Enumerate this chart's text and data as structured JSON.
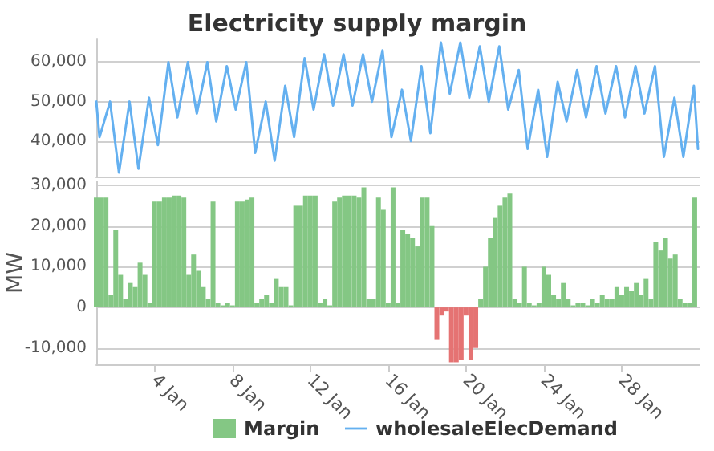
{
  "chart_data": [
    {
      "type": "line",
      "title": "Electricity supply margin",
      "tick_labels": "y",
      "grid": "y",
      "legend": "bottom",
      "marker": "none",
      "line_style": "solid",
      "xlim": [
        "--01-01",
        "--02-01"
      ],
      "ylim": [
        31000,
        66000
      ],
      "yticks": [
        {
          "value": 40000,
          "label": "40,000"
        },
        {
          "value": 50000,
          "label": "50,000"
        },
        {
          "value": 60000,
          "label": "60,000"
        }
      ],
      "series": [
        {
          "name": "wholesaleElecDemand",
          "color": "#64b0f0",
          "x": [
            "--01-01T00:00",
            "--01-01T04:00",
            "--01-01T17:00",
            "--01-02T04:00",
            "--01-02T17:00",
            "--01-03T04:00",
            "--01-03T17:00",
            "--01-04T04:00",
            "--01-04T17:00",
            "--01-05T04:00",
            "--01-05T17:00",
            "--01-06T04:00",
            "--01-06T17:00",
            "--01-07T04:00",
            "--01-07T17:00",
            "--01-08T04:00",
            "--01-08T17:00",
            "--01-09T04:00",
            "--01-09T17:00",
            "--01-10T04:00",
            "--01-10T17:00",
            "--01-11T04:00",
            "--01-11T17:00",
            "--01-12T04:00",
            "--01-12T17:00",
            "--01-13T04:00",
            "--01-13T17:00",
            "--01-14T04:00",
            "--01-14T17:00",
            "--01-15T04:00",
            "--01-15T17:00",
            "--01-16T04:00",
            "--01-16T17:00",
            "--01-17T04:00",
            "--01-17T17:00",
            "--01-18T04:00",
            "--01-18T17:00",
            "--01-19T04:00",
            "--01-19T17:00",
            "--01-20T04:00",
            "--01-20T17:00",
            "--01-21T04:00",
            "--01-21T17:00",
            "--01-22T04:00",
            "--01-22T17:00",
            "--01-23T04:00",
            "--01-23T17:00",
            "--01-24T04:00",
            "--01-24T17:00",
            "--01-25T04:00",
            "--01-25T17:00",
            "--01-26T04:00",
            "--01-26T17:00",
            "--01-27T04:00",
            "--01-27T17:00",
            "--01-28T04:00",
            "--01-28T17:00",
            "--01-29T04:00",
            "--01-29T17:00",
            "--01-30T04:00",
            "--01-30T17:00",
            "--01-31T04:00",
            "--01-31T17:00",
            "--01-31T22:00"
          ],
          "values": [
            50000,
            41000,
            50000,
            32000,
            50000,
            33000,
            51000,
            39000,
            60000,
            46000,
            60000,
            47000,
            60000,
            45000,
            59000,
            48000,
            60000,
            37000,
            50000,
            35000,
            54000,
            41000,
            61000,
            48000,
            62000,
            49000,
            62000,
            49000,
            62000,
            50000,
            63000,
            41000,
            53000,
            40000,
            59000,
            42000,
            65000,
            52000,
            65000,
            51000,
            64000,
            50000,
            64000,
            48000,
            58000,
            38000,
            53000,
            36000,
            55000,
            45000,
            58000,
            46000,
            59000,
            47000,
            59000,
            46000,
            59000,
            47000,
            59000,
            36000,
            51000,
            36000,
            54000,
            38000
          ]
        }
      ]
    },
    {
      "type": "bar",
      "ylabel": "MW",
      "grid": "y",
      "legend": "bottom",
      "xlim": [
        "--01-01",
        "--02-01"
      ],
      "xticks": [
        {
          "value": "--01-04",
          "label": "4 Jan"
        },
        {
          "value": "--01-08",
          "label": "8 Jan"
        },
        {
          "value": "--01-12",
          "label": "12 Jan"
        },
        {
          "value": "--01-16",
          "label": "16 Jan"
        },
        {
          "value": "--01-20",
          "label": "20 Jan"
        },
        {
          "value": "--01-24",
          "label": "24 Jan"
        },
        {
          "value": "--01-28",
          "label": "28 Jan"
        }
      ],
      "ylim": [
        -14000,
        31000
      ],
      "yticks": [
        {
          "value": -10000,
          "label": "-10,000"
        },
        {
          "value": 0,
          "label": "0"
        },
        {
          "value": 10000,
          "label": "10,000"
        },
        {
          "value": 20000,
          "label": "20,000"
        },
        {
          "value": 30000,
          "label": "30,000"
        }
      ],
      "series": [
        {
          "name": "Margin",
          "color": "#84c784",
          "x": [
            "--01-01T00:00",
            "--01-01T06:00",
            "--01-01T12:00",
            "--01-01T18:00",
            "--01-02T00:00",
            "--01-02T06:00",
            "--01-02T12:00",
            "--01-02T18:00",
            "--01-03T00:00",
            "--01-03T06:00",
            "--01-03T12:00",
            "--01-03T18:00",
            "--01-04T00:00",
            "--01-04T06:00",
            "--01-04T12:00",
            "--01-04T18:00",
            "--01-05T00:00",
            "--01-05T06:00",
            "--01-05T12:00",
            "--01-05T18:00",
            "--01-06T00:00",
            "--01-06T06:00",
            "--01-06T12:00",
            "--01-06T18:00",
            "--01-07T00:00",
            "--01-07T06:00",
            "--01-07T12:00",
            "--01-07T18:00",
            "--01-08T00:00",
            "--01-08T06:00",
            "--01-08T12:00",
            "--01-08T18:00",
            "--01-09T00:00",
            "--01-09T06:00",
            "--01-09T12:00",
            "--01-09T18:00",
            "--01-10T00:00",
            "--01-10T06:00",
            "--01-10T12:00",
            "--01-10T18:00",
            "--01-11T00:00",
            "--01-11T06:00",
            "--01-11T12:00",
            "--01-11T18:00",
            "--01-12T00:00",
            "--01-12T06:00",
            "--01-12T12:00",
            "--01-12T18:00",
            "--01-13T00:00",
            "--01-13T06:00",
            "--01-13T12:00",
            "--01-13T18:00",
            "--01-14T00:00",
            "--01-14T06:00",
            "--01-14T12:00",
            "--01-14T18:00",
            "--01-15T00:00",
            "--01-15T06:00",
            "--01-15T12:00",
            "--01-15T18:00",
            "--01-16T00:00",
            "--01-16T06:00",
            "--01-16T12:00",
            "--01-16T18:00",
            "--01-17T00:00",
            "--01-17T06:00",
            "--01-17T12:00",
            "--01-17T18:00",
            "--01-18T00:00",
            "--01-18T06:00",
            "--01-18T12:00",
            "--01-18T18:00",
            "--01-19T00:00",
            "--01-19T06:00",
            "--01-19T12:00",
            "--01-19T18:00",
            "--01-20T00:00",
            "--01-20T06:00",
            "--01-20T12:00",
            "--01-20T18:00",
            "--01-21T00:00",
            "--01-21T06:00",
            "--01-21T12:00",
            "--01-21T18:00",
            "--01-22T00:00",
            "--01-22T06:00",
            "--01-22T12:00",
            "--01-22T18:00",
            "--01-23T00:00",
            "--01-23T06:00",
            "--01-23T12:00",
            "--01-23T18:00",
            "--01-24T00:00",
            "--01-24T06:00",
            "--01-24T12:00",
            "--01-24T18:00",
            "--01-25T00:00",
            "--01-25T06:00",
            "--01-25T12:00",
            "--01-25T18:00",
            "--01-26T00:00",
            "--01-26T06:00",
            "--01-26T12:00",
            "--01-26T18:00",
            "--01-27T00:00",
            "--01-27T06:00",
            "--01-27T12:00",
            "--01-27T18:00",
            "--01-28T00:00",
            "--01-28T06:00",
            "--01-28T12:00",
            "--01-28T18:00",
            "--01-29T00:00",
            "--01-29T06:00",
            "--01-29T12:00",
            "--01-29T18:00",
            "--01-30T00:00",
            "--01-30T06:00",
            "--01-30T12:00",
            "--01-30T18:00",
            "--01-31T00:00",
            "--01-31T06:00",
            "--01-31T12:00",
            "--01-31T18:00"
          ],
          "values": [
            27000,
            27000,
            27000,
            3000,
            19000,
            8000,
            2000,
            6000,
            5000,
            11000,
            8000,
            1000,
            26000,
            26000,
            27000,
            27000,
            27500,
            27500,
            27000,
            8000,
            13000,
            9000,
            5000,
            2000,
            26000,
            1000,
            500,
            1000,
            500,
            26000,
            26000,
            26500,
            27000,
            1000,
            2000,
            3000,
            1000,
            7000,
            5000,
            5000,
            500,
            25000,
            25000,
            27500,
            27500,
            27500,
            1000,
            2000,
            500,
            26000,
            27000,
            27500,
            27500,
            27500,
            27000,
            29500,
            2000,
            2000,
            27000,
            24000,
            1000,
            29500,
            1000,
            19000,
            18000,
            17000,
            15000,
            27000,
            27000,
            20000,
            -8000,
            -2000,
            -1000,
            -13500,
            -13500,
            -13000,
            -2000,
            -13000,
            -10000,
            2000,
            10000,
            17000,
            22000,
            25000,
            27000,
            28000,
            2000,
            1000,
            10000,
            1000,
            500,
            1000,
            10000,
            8000,
            3000,
            2000,
            6000,
            2000,
            500,
            1000,
            1000,
            500,
            2000,
            1000,
            3000,
            2000,
            2000,
            5000,
            3000,
            5000,
            4000,
            6000,
            3000,
            7000,
            2000,
            16000,
            14000,
            17000,
            12000,
            13000,
            2000,
            1000,
            1000,
            27000
          ],
          "colors": [
            "#84c784",
            "#84c784",
            "#84c784",
            "#84c784",
            "#84c784",
            "#84c784",
            "#84c784",
            "#84c784",
            "#84c784",
            "#84c784",
            "#84c784",
            "#84c784",
            "#84c784",
            "#84c784",
            "#84c784",
            "#84c784",
            "#84c784",
            "#84c784",
            "#84c784",
            "#84c784",
            "#84c784",
            "#84c784",
            "#84c784",
            "#84c784",
            "#84c784",
            "#84c784",
            "#84c784",
            "#84c784",
            "#84c784",
            "#84c784",
            "#84c784",
            "#84c784",
            "#84c784",
            "#84c784",
            "#84c784",
            "#84c784",
            "#84c784",
            "#84c784",
            "#84c784",
            "#84c784",
            "#84c784",
            "#84c784",
            "#84c784",
            "#84c784",
            "#84c784",
            "#84c784",
            "#84c784",
            "#84c784",
            "#84c784",
            "#84c784",
            "#84c784",
            "#84c784",
            "#84c784",
            "#84c784",
            "#84c784",
            "#84c784",
            "#84c784",
            "#84c784",
            "#84c784",
            "#84c784",
            "#84c784",
            "#84c784",
            "#84c784",
            "#84c784",
            "#84c784",
            "#84c784",
            "#84c784",
            "#84c784",
            "#84c784",
            "#84c784",
            "#e57373",
            "#e57373",
            "#e57373",
            "#e57373",
            "#e57373",
            "#e57373",
            "#e57373",
            "#e57373",
            "#e57373",
            "#84c784",
            "#84c784",
            "#84c784",
            "#84c784",
            "#84c784",
            "#84c784",
            "#84c784",
            "#84c784",
            "#84c784",
            "#84c784",
            "#84c784",
            "#84c784",
            "#84c784",
            "#84c784",
            "#84c784",
            "#84c784",
            "#84c784",
            "#84c784",
            "#84c784",
            "#84c784",
            "#84c784",
            "#84c784",
            "#84c784",
            "#84c784",
            "#84c784",
            "#84c784",
            "#84c784",
            "#84c784",
            "#84c784",
            "#84c784",
            "#84c784",
            "#84c784",
            "#84c784",
            "#84c784",
            "#84c784",
            "#84c784",
            "#84c784",
            "#84c784",
            "#84c784",
            "#84c784",
            "#84c784",
            "#84c784",
            "#84c784",
            "#84c784",
            "#84c784"
          ]
        }
      ]
    }
  ]
}
